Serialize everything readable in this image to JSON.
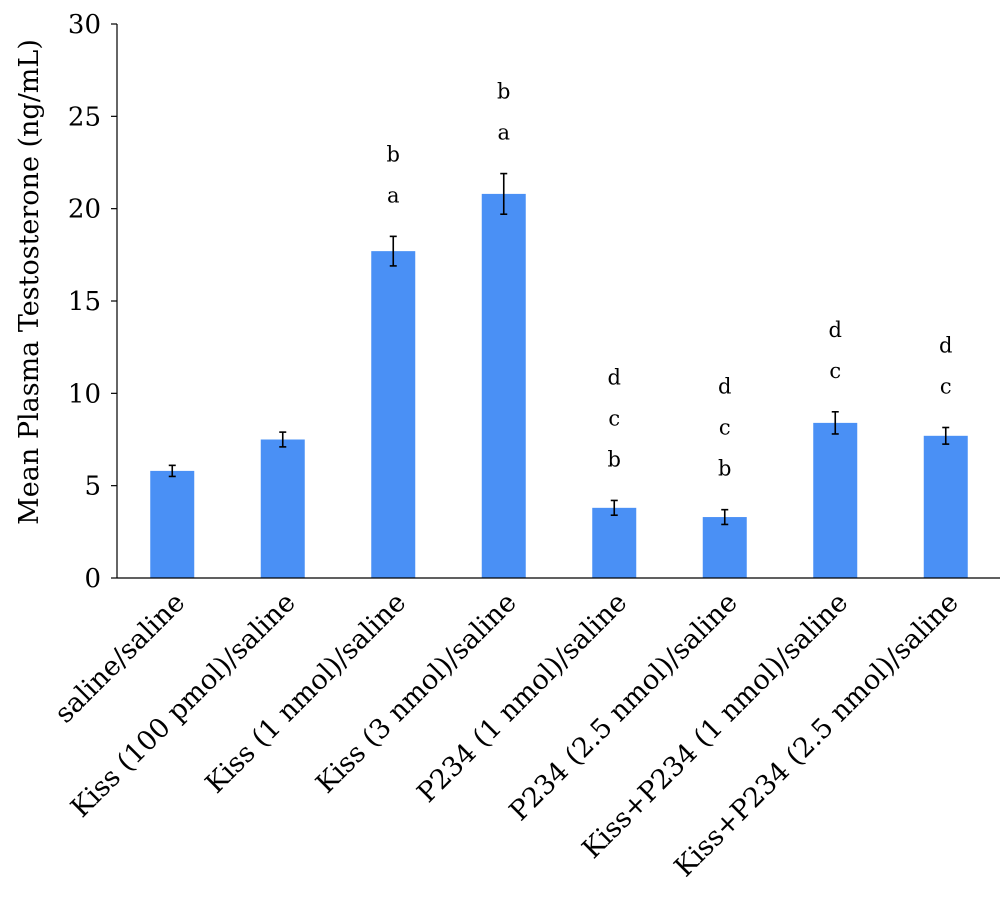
{
  "chart_data": {
    "type": "bar",
    "title": "",
    "xlabel": "",
    "ylabel": "Mean Plasma Testosterone (ng/mL)",
    "ylim": [
      0,
      30
    ],
    "yticks": [
      0,
      5,
      10,
      15,
      20,
      25,
      30
    ],
    "grid": false,
    "legend": "none",
    "bar_color": "#4a90f5",
    "categories": [
      "saline/saline",
      "Kiss (100 pmol)/saline",
      "Kiss (1 nmol)/saline",
      "Kiss (3 nmol)/saline",
      "P234 (1 nmol)/saline",
      "P234 (2.5 nmol)/saline",
      "Kiss+P234 (1 nmol)/saline",
      "Kiss+P234 (2.5 nmol)/saline"
    ],
    "values": [
      5.8,
      7.5,
      17.7,
      20.8,
      3.8,
      3.3,
      8.4,
      7.7
    ],
    "errors": [
      0.3,
      0.4,
      0.8,
      1.1,
      0.4,
      0.4,
      0.6,
      0.45
    ],
    "significance_letters": [
      [],
      [],
      [
        "a",
        "b"
      ],
      [
        "a",
        "b"
      ],
      [
        "b",
        "c",
        "d"
      ],
      [
        "b",
        "c",
        "d"
      ],
      [
        "c",
        "d"
      ],
      [
        "c",
        "d"
      ]
    ]
  }
}
